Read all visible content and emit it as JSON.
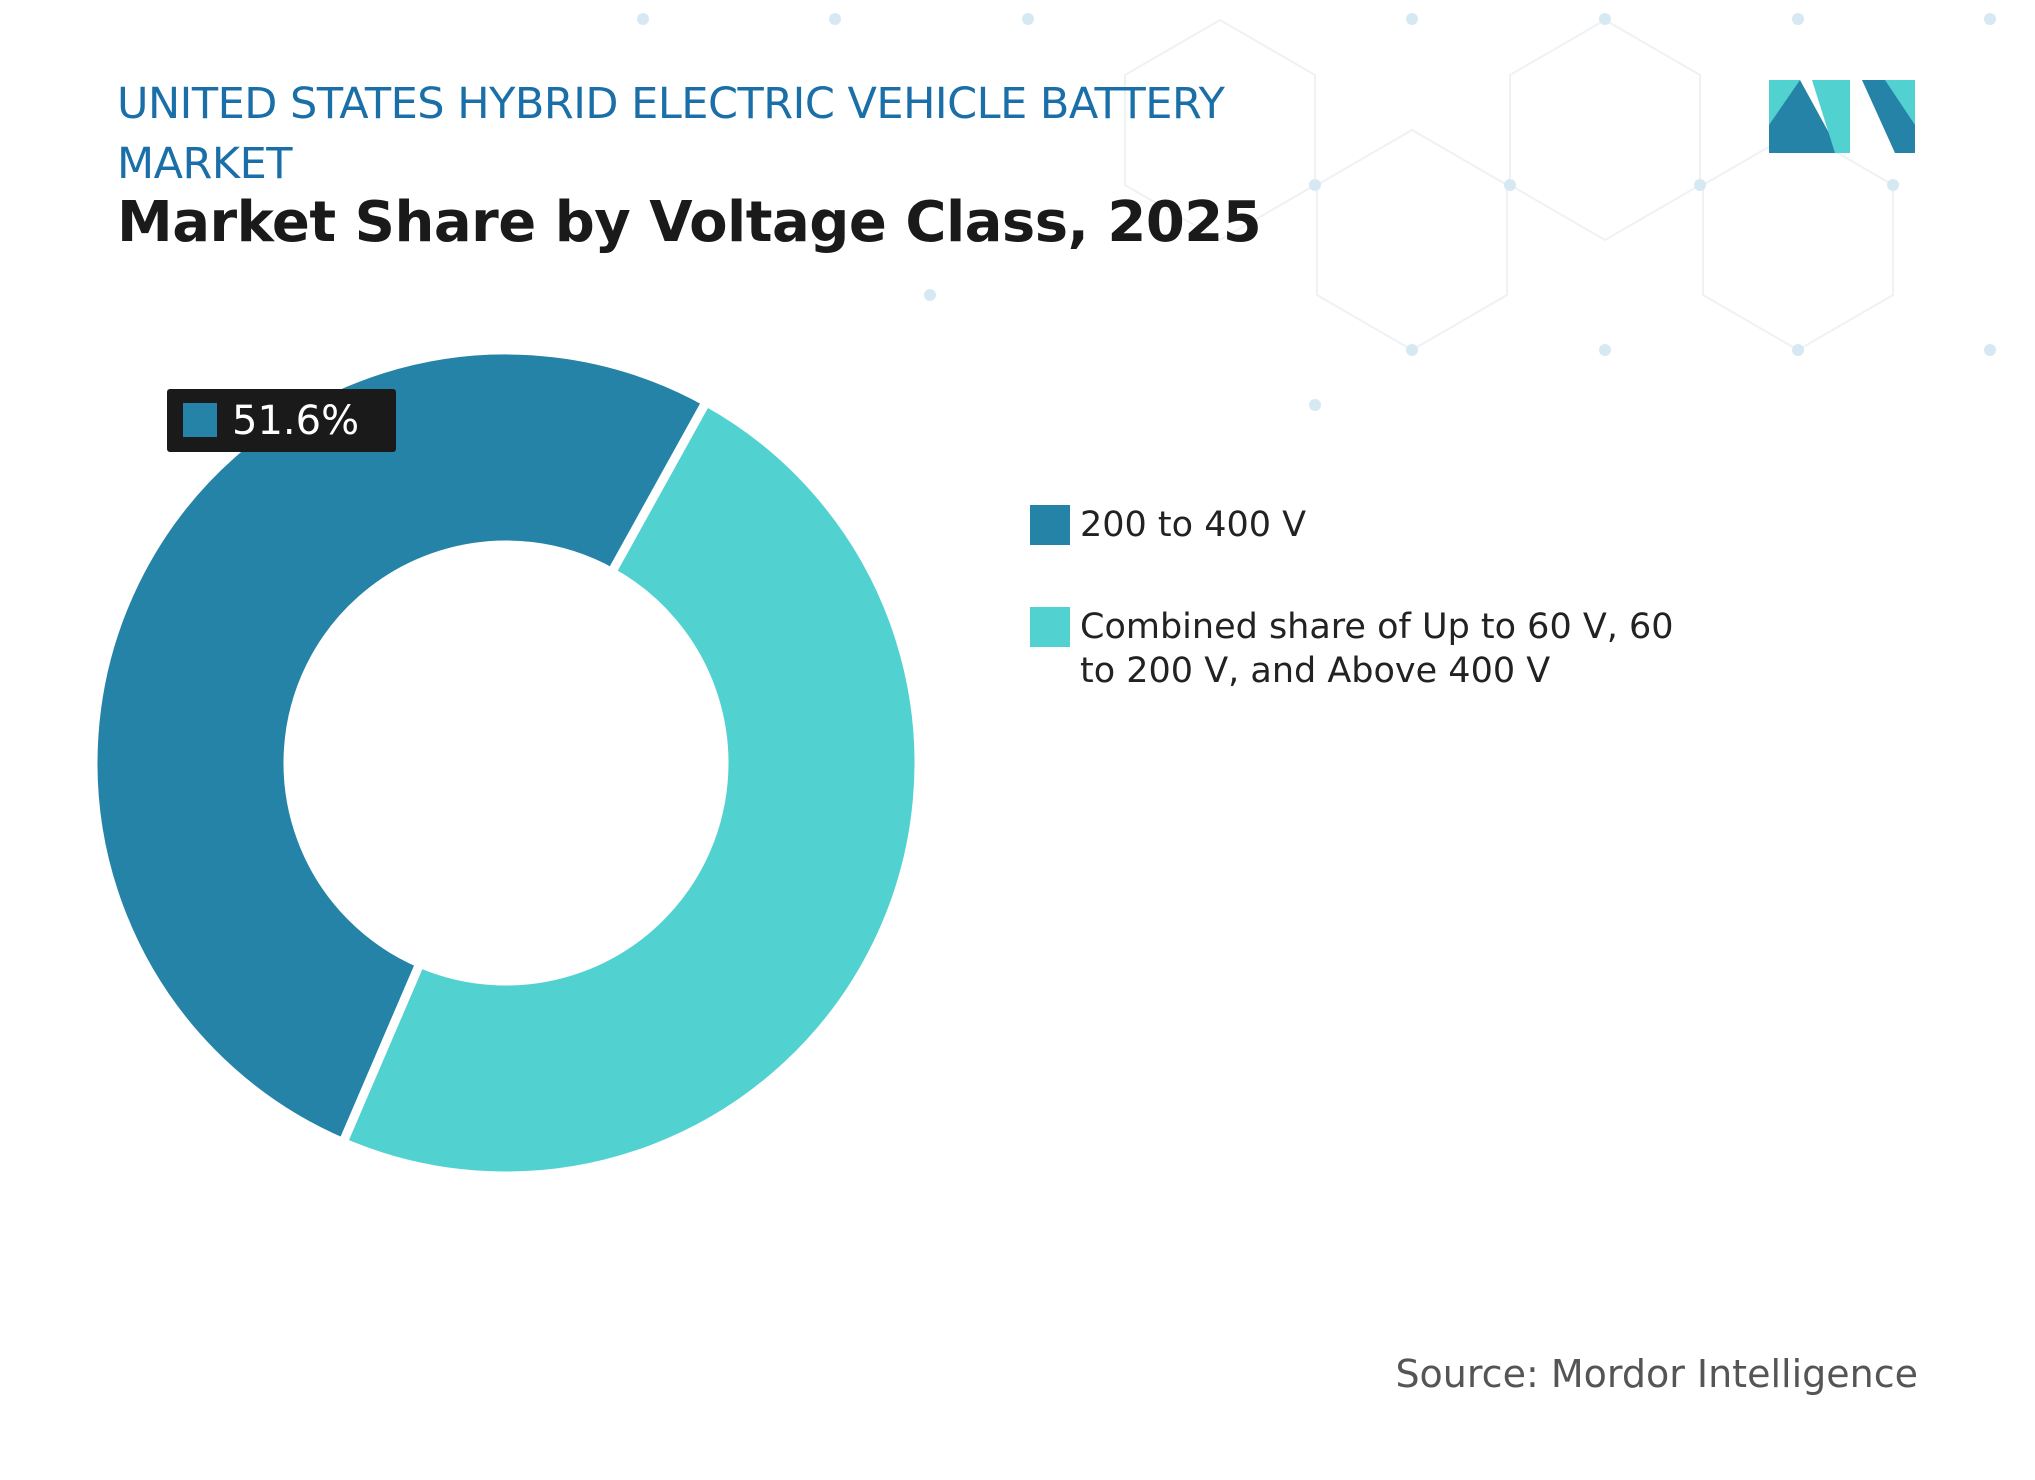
{
  "chart_data": {
    "type": "donut",
    "title": "UNITED STATES HYBRID ELECTRIC VEHICLE BATTERY MARKET",
    "subtitle": "Market Share by Voltage Class, 2025",
    "categories": [
      "200 to 400 V",
      "Combined share of Up to 60 V, 60 to 200 V, and Above 400 V"
    ],
    "values": [
      51.6,
      48.4
    ],
    "value_labels": [
      "51.6%",
      null
    ],
    "colors": [
      "#2683a8",
      "#52d1d1"
    ],
    "source": "Source: Mordor Intelligence"
  }
}
